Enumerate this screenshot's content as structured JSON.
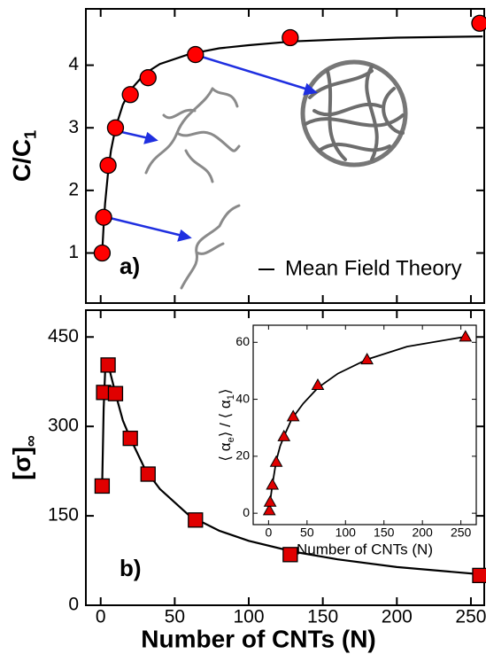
{
  "chart_data": [
    {
      "type": "scatter",
      "panel_label": "a)",
      "ylabel": [
        {
          "text": "C/C"
        },
        {
          "text": "1",
          "sub": true
        }
      ],
      "xlim": [
        -10,
        259
      ],
      "ylim": [
        0.2,
        4.9
      ],
      "xticks": [
        0,
        50,
        100,
        150,
        200,
        250
      ],
      "xtick_labels": false,
      "yticks": [
        1,
        2,
        3,
        4
      ],
      "legend": "lower right",
      "series": [
        {
          "name": "Mean Field Theory",
          "kind": "line",
          "color": "#000000",
          "x": [
            1,
            2,
            3,
            5,
            7,
            10,
            15,
            20,
            30,
            40,
            60,
            80,
            100,
            130,
            160,
            200,
            258
          ],
          "values": [
            1,
            1.445,
            1.79,
            2.29,
            2.64,
            3.0,
            3.37,
            3.6,
            3.87,
            4.02,
            4.18,
            4.27,
            4.32,
            4.38,
            4.41,
            4.44,
            4.46
          ]
        },
        {
          "kind": "marker",
          "marker": "circle",
          "color": "#ff0000",
          "x": [
            1,
            2,
            5,
            10,
            20,
            32,
            64,
            128,
            256
          ],
          "values": [
            1.0,
            1.57,
            2.4,
            3.0,
            3.53,
            3.8,
            4.17,
            4.44,
            4.67
          ]
        }
      ]
    },
    {
      "type": "scatter",
      "panel_label": "b)",
      "ylabel": [
        {
          "text": "[σ]"
        },
        {
          "text": "∞",
          "sub": true
        }
      ],
      "xlabel": "Number of CNTs (N)",
      "xlim": [
        -10,
        259
      ],
      "ylim": [
        0,
        495
      ],
      "xticks": [
        0,
        50,
        100,
        150,
        200,
        250
      ],
      "yticks": [
        0,
        150,
        300,
        450
      ],
      "series": [
        {
          "kind": "line",
          "color": "#000000",
          "x": [
            1,
            2,
            3,
            4,
            5,
            7,
            10,
            15,
            20,
            30,
            40,
            60,
            80,
            100,
            130,
            160,
            200,
            256
          ],
          "values": [
            200,
            330,
            390,
            408,
            405,
            385,
            355,
            310,
            280,
            228,
            195,
            150,
            125,
            108,
            90,
            77,
            64,
            52
          ]
        },
        {
          "kind": "marker",
          "marker": "square",
          "color": "#e00000",
          "x": [
            1,
            2,
            5,
            10,
            20,
            32,
            64,
            128,
            256
          ],
          "values": [
            200,
            357,
            403,
            355,
            280,
            220,
            143,
            85,
            50
          ]
        }
      ]
    },
    {
      "type": "scatter",
      "ylabel": [
        {
          "text": "⟨ α"
        },
        {
          "text": "e",
          "sub": true
        },
        {
          "text": "⟩ / ⟨ α"
        },
        {
          "text": "1",
          "sub": true
        },
        {
          "text": "⟩"
        }
      ],
      "xlabel": "Number of CNTs (N)",
      "xlim": [
        -20,
        270
      ],
      "ylim": [
        -4,
        66
      ],
      "xticks": [
        0,
        50,
        100,
        150,
        200,
        250
      ],
      "yticks": [
        0,
        20,
        40,
        60
      ],
      "series": [
        {
          "kind": "line",
          "color": "#000000",
          "x": [
            1,
            2,
            5,
            10,
            15,
            20,
            30,
            45,
            64,
            90,
            128,
            180,
            256
          ],
          "values": [
            1,
            4,
            10,
            18.5,
            23.5,
            27,
            33,
            38.5,
            44,
            49,
            54,
            58.5,
            62
          ]
        },
        {
          "kind": "marker",
          "marker": "triangle",
          "color": "#e00000",
          "x": [
            1,
            2,
            5,
            10,
            20,
            32,
            64,
            128,
            256
          ],
          "values": [
            1,
            4,
            10,
            18,
            27,
            34,
            45,
            54,
            62
          ]
        }
      ]
    }
  ]
}
